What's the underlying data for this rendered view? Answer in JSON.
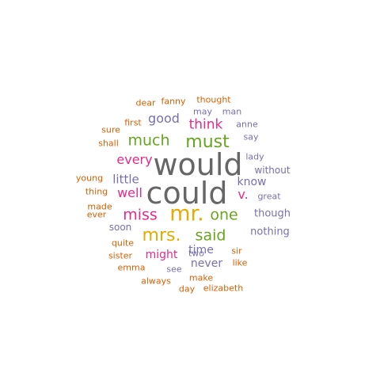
{
  "words": [
    {
      "text": "would",
      "color": "#666666",
      "weight": 10
    },
    {
      "text": "could",
      "color": "#666666",
      "weight": 10
    },
    {
      "text": "mr.",
      "color": "#E6AB02",
      "weight": 7
    },
    {
      "text": "mrs.",
      "color": "#E6AB02",
      "weight": 6
    },
    {
      "text": "must",
      "color": "#66A61E",
      "weight": 6
    },
    {
      "text": "much",
      "color": "#66A61E",
      "weight": 5
    },
    {
      "text": "one",
      "color": "#66A61E",
      "weight": 5
    },
    {
      "text": "said",
      "color": "#66A61E",
      "weight": 5
    },
    {
      "text": "miss",
      "color": "#E7298A",
      "weight": 5
    },
    {
      "text": "v.",
      "color": "#E7298A",
      "weight": 4
    },
    {
      "text": "think",
      "color": "#E7298A",
      "weight": 4
    },
    {
      "text": "every",
      "color": "#E7298A",
      "weight": 4
    },
    {
      "text": "well",
      "color": "#E7298A",
      "weight": 4
    },
    {
      "text": "good",
      "color": "#7570B3",
      "weight": 4
    },
    {
      "text": "little",
      "color": "#7570B3",
      "weight": 3
    },
    {
      "text": "know",
      "color": "#7570B3",
      "weight": 3
    },
    {
      "text": "time",
      "color": "#7570B3",
      "weight": 3
    },
    {
      "text": "might",
      "color": "#E7298A",
      "weight": 3
    },
    {
      "text": "never",
      "color": "#7570B3",
      "weight": 3
    },
    {
      "text": "though",
      "color": "#7570B3",
      "weight": 2
    },
    {
      "text": "nothing",
      "color": "#7570B3",
      "weight": 2
    },
    {
      "text": "soon",
      "color": "#7570B3",
      "weight": 2
    },
    {
      "text": "without",
      "color": "#7570B3",
      "weight": 2
    },
    {
      "text": "dear",
      "color": "#D95F02",
      "weight": 1
    },
    {
      "text": "fanny",
      "color": "#D95F02",
      "weight": 1
    },
    {
      "text": "thought",
      "color": "#D95F02",
      "weight": 1
    },
    {
      "text": "may",
      "color": "#7570B3",
      "weight": 1
    },
    {
      "text": "man",
      "color": "#7570B3",
      "weight": 1
    },
    {
      "text": "first",
      "color": "#D95F02",
      "weight": 1
    },
    {
      "text": "sure",
      "color": "#D95F02",
      "weight": 1
    },
    {
      "text": "shall",
      "color": "#D95F02",
      "weight": 1
    },
    {
      "text": "anne",
      "color": "#7570B3",
      "weight": 1
    },
    {
      "text": "say",
      "color": "#7570B3",
      "weight": 1
    },
    {
      "text": "lady",
      "color": "#7570B3",
      "weight": 1
    },
    {
      "text": "young",
      "color": "#D95F02",
      "weight": 1
    },
    {
      "text": "thing",
      "color": "#D95F02",
      "weight": 1
    },
    {
      "text": "great",
      "color": "#7570B3",
      "weight": 1
    },
    {
      "text": "made",
      "color": "#D95F02",
      "weight": 1
    },
    {
      "text": "ever",
      "color": "#D95F02",
      "weight": 1
    },
    {
      "text": "quite",
      "color": "#D95F02",
      "weight": 1
    },
    {
      "text": "sister",
      "color": "#D95F02",
      "weight": 1
    },
    {
      "text": "two",
      "color": "#7570B3",
      "weight": 1
    },
    {
      "text": "sir",
      "color": "#D95F02",
      "weight": 1
    },
    {
      "text": "emma",
      "color": "#D95F02",
      "weight": 1
    },
    {
      "text": "see",
      "color": "#7570B3",
      "weight": 1
    },
    {
      "text": "like",
      "color": "#D95F02",
      "weight": 1
    },
    {
      "text": "always",
      "color": "#D95F02",
      "weight": 1
    },
    {
      "text": "make",
      "color": "#D95F02",
      "weight": 1
    },
    {
      "text": "day",
      "color": "#D95F02",
      "weight": 1
    },
    {
      "text": "elizabeth",
      "color": "#D95F02",
      "weight": 1
    }
  ]
}
